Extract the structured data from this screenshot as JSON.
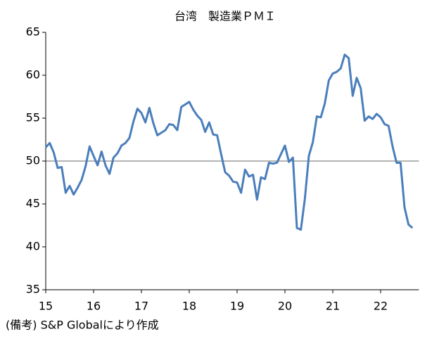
{
  "chart_data": {
    "type": "line",
    "title": "台湾　製造業ＰＭＩ",
    "note": "(備考) S&P Globalにより作成",
    "categories": [
      "15",
      null,
      null,
      null,
      null,
      null,
      null,
      null,
      null,
      null,
      null,
      null,
      "16",
      null,
      null,
      null,
      null,
      null,
      null,
      null,
      null,
      null,
      null,
      null,
      "17",
      null,
      null,
      null,
      null,
      null,
      null,
      null,
      null,
      null,
      null,
      null,
      "18",
      null,
      null,
      null,
      null,
      null,
      null,
      null,
      null,
      null,
      null,
      null,
      "19",
      null,
      null,
      null,
      null,
      null,
      null,
      null,
      null,
      null,
      null,
      null,
      "20",
      null,
      null,
      null,
      null,
      null,
      null,
      null,
      null,
      null,
      null,
      null,
      "21",
      null,
      null,
      null,
      null,
      null,
      null,
      null,
      null,
      null,
      null,
      null,
      "22",
      null,
      null,
      null,
      null,
      null,
      null,
      null,
      null
    ],
    "series": [
      {
        "color": "#4a7ebb",
        "values": [
          51.6,
          52.1,
          51.0,
          49.2,
          49.3,
          46.3,
          47.1,
          46.1,
          46.9,
          47.8,
          49.4,
          51.7,
          50.6,
          49.5,
          51.1,
          49.5,
          48.5,
          50.4,
          50.9,
          51.8,
          52.1,
          52.7,
          54.6,
          56.1,
          55.6,
          54.5,
          56.2,
          54.4,
          53.0,
          53.3,
          53.6,
          54.3,
          54.2,
          53.6,
          56.3,
          56.6,
          56.9,
          56.0,
          55.3,
          54.8,
          53.4,
          54.5,
          53.1,
          53.0,
          50.8,
          48.7,
          48.3,
          47.6,
          47.5,
          46.3,
          49.0,
          48.2,
          48.4,
          45.5,
          48.1,
          47.9,
          49.8,
          49.7,
          49.8,
          50.8,
          51.8,
          49.9,
          50.4,
          42.2,
          42.0,
          45.6,
          50.6,
          52.2,
          55.2,
          55.1,
          56.7,
          59.4,
          60.2,
          60.4,
          60.8,
          62.4,
          62.0,
          57.6,
          59.7,
          58.5,
          54.7,
          55.2,
          54.9,
          55.5,
          55.1,
          54.3,
          54.1,
          51.7,
          49.8,
          49.8,
          44.6,
          42.6,
          42.2
        ]
      }
    ],
    "ylim": [
      35,
      65
    ],
    "yticks": [
      35,
      40,
      45,
      50,
      55,
      60,
      65
    ],
    "hline": 50
  }
}
